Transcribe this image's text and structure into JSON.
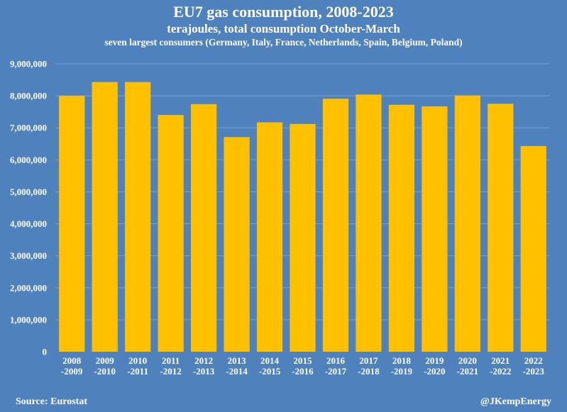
{
  "header": {
    "title": "EU7 gas consumption, 2008-2023",
    "subtitle": "terajoules, total consumption October-March",
    "subtitle2": "seven largest consumers (Germany, Italy, France, Netherlands, Spain, Belgium, Poland)"
  },
  "footer": {
    "source": "Source: Eurostat",
    "credit": "@JKempEnergy"
  },
  "colors": {
    "background": "#4f81bd",
    "bar": "#ffc000",
    "gridline": "#7a9fd1",
    "text": "#ffffff"
  },
  "chart_data": {
    "type": "bar",
    "title": "EU7 gas consumption, 2008-2023",
    "subtitle": "terajoules, total consumption October-March",
    "categories": [
      [
        "2008",
        "-2009"
      ],
      [
        "2009",
        "-2010"
      ],
      [
        "2010",
        "-2011"
      ],
      [
        "2011",
        "-2012"
      ],
      [
        "2012",
        "-2013"
      ],
      [
        "2013",
        "-2014"
      ],
      [
        "2014",
        "-2015"
      ],
      [
        "2015",
        "-2016"
      ],
      [
        "2016",
        "-2017"
      ],
      [
        "2017",
        "-2018"
      ],
      [
        "2018",
        "-2019"
      ],
      [
        "2019",
        "-2020"
      ],
      [
        "2020",
        "-2021"
      ],
      [
        "2021",
        "-2022"
      ],
      [
        "2022",
        "-2023"
      ]
    ],
    "values": [
      8000000,
      8430000,
      8430000,
      7400000,
      7740000,
      6710000,
      7170000,
      7120000,
      7910000,
      8040000,
      7720000,
      7670000,
      8010000,
      7750000,
      6430000
    ],
    "xlabel": "",
    "ylabel": "",
    "ylim": [
      0,
      9000000
    ],
    "yticks": [
      0,
      1000000,
      2000000,
      3000000,
      4000000,
      5000000,
      6000000,
      7000000,
      8000000,
      9000000
    ],
    "ytick_labels": [
      "0",
      "1,000,000",
      "2,000,000",
      "3,000,000",
      "4,000,000",
      "5,000,000",
      "6,000,000",
      "7,000,000",
      "8,000,000",
      "9,000,000"
    ],
    "grid": true,
    "legend": "none"
  }
}
